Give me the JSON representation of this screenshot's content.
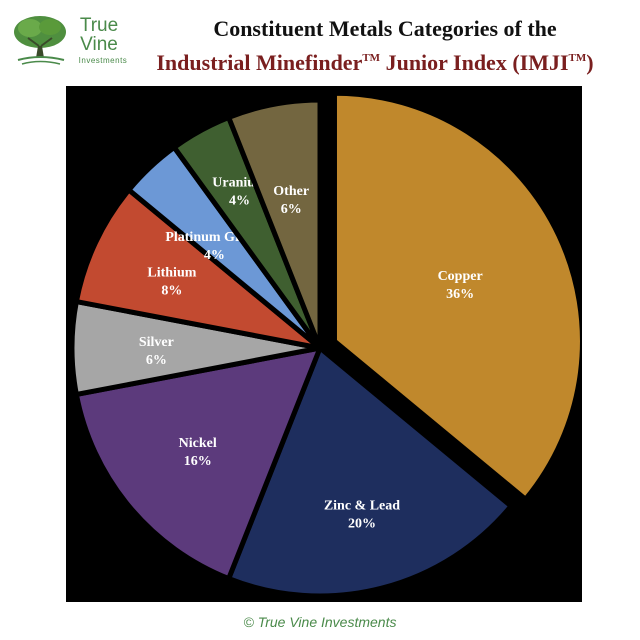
{
  "logo": {
    "line1": "True",
    "line2": "Vine",
    "sub": "Investments",
    "tree_icon": "tree-icon"
  },
  "title": {
    "line1": "Constituent Metals Categories of the",
    "line2_main": "Industrial Minefinder",
    "tm1": "TM",
    "line2_mid": " Junior Index (IMJI",
    "tm2": "TM",
    "line2_end": ")"
  },
  "copyright": "© True Vine Investments",
  "chart_data": {
    "type": "pie",
    "start": "12 o'clock, clockwise",
    "slices": [
      {
        "label": "Copper",
        "value": 36,
        "pct_label": "36%",
        "color": "#c0882c",
        "exploded": true
      },
      {
        "label": "Zinc & Lead",
        "value": 20,
        "pct_label": "20%",
        "color": "#1e2e5e"
      },
      {
        "label": "Nickel",
        "value": 16,
        "pct_label": "16%",
        "color": "#5c3a7c"
      },
      {
        "label": "Silver",
        "value": 6,
        "pct_label": "6%",
        "color": "#a6a6a6"
      },
      {
        "label": "Lithium",
        "value": 8,
        "pct_label": "8%",
        "color": "#c24a30"
      },
      {
        "label": "Platinum Group",
        "value": 4,
        "pct_label": "4%",
        "color": "#6c98d6"
      },
      {
        "label": "Uranium",
        "value": 4,
        "pct_label": "4%",
        "color": "#3f5f30"
      },
      {
        "label": "Other",
        "value": 6,
        "pct_label": "6%",
        "color": "#736640"
      }
    ]
  }
}
